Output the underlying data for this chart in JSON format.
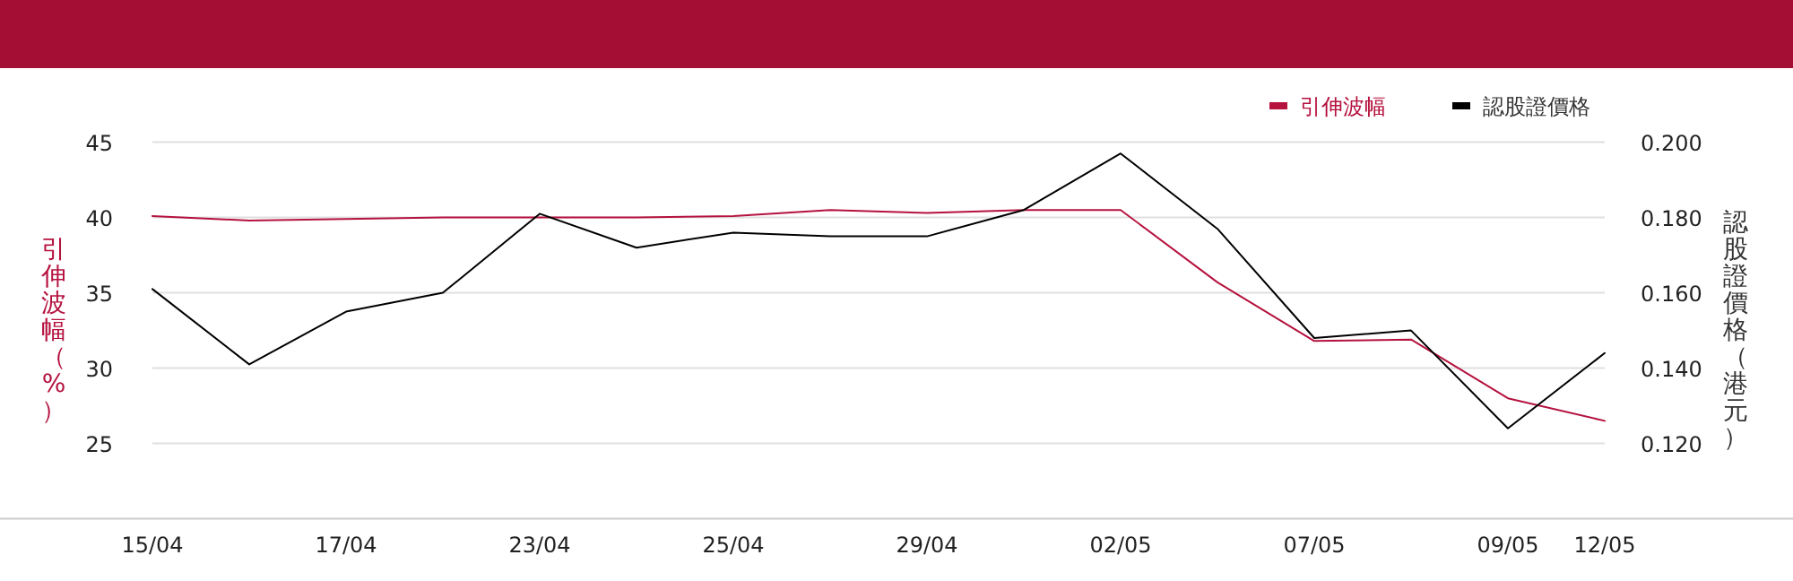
{
  "chart_data": {
    "type": "line",
    "categories": [
      "15/04",
      null,
      "17/04",
      null,
      "23/04",
      null,
      "25/04",
      null,
      "29/04",
      null,
      "02/05",
      null,
      "07/05",
      null,
      "09/05",
      "12/05"
    ],
    "series": [
      {
        "name": "引伸波幅",
        "color": "#b5123e",
        "values": [
          40.1,
          39.8,
          39.9,
          40.0,
          40.0,
          40.0,
          40.1,
          40.5,
          40.3,
          40.5,
          40.5,
          35.7,
          31.8,
          31.9,
          28.0,
          26.5
        ]
      },
      {
        "name": "認股證價格",
        "color": "#000000",
        "axis": "y2",
        "values": [
          0.161,
          0.141,
          0.155,
          0.16,
          0.181,
          0.172,
          0.176,
          0.175,
          0.175,
          0.182,
          0.197,
          0.177,
          0.148,
          0.15,
          0.124,
          0.144
        ]
      }
    ],
    "ylabel": "引伸波幅（%）",
    "y2label": "認股證價格（港元）",
    "ylim": [
      20,
      45
    ],
    "yticks": [
      25,
      30,
      35,
      40,
      45
    ],
    "y2lim": [
      0.1,
      0.2
    ],
    "y2ticks": [
      {
        "value": 0.12,
        "label": "0.120"
      },
      {
        "value": 0.14,
        "label": "0.140"
      },
      {
        "value": 0.16,
        "label": "0.160"
      },
      {
        "value": 0.18,
        "label": "0.180"
      },
      {
        "value": 0.2,
        "label": "0.200"
      }
    ],
    "grid": "y",
    "legend": "top right",
    "marker": "none",
    "line_style": "solid"
  }
}
